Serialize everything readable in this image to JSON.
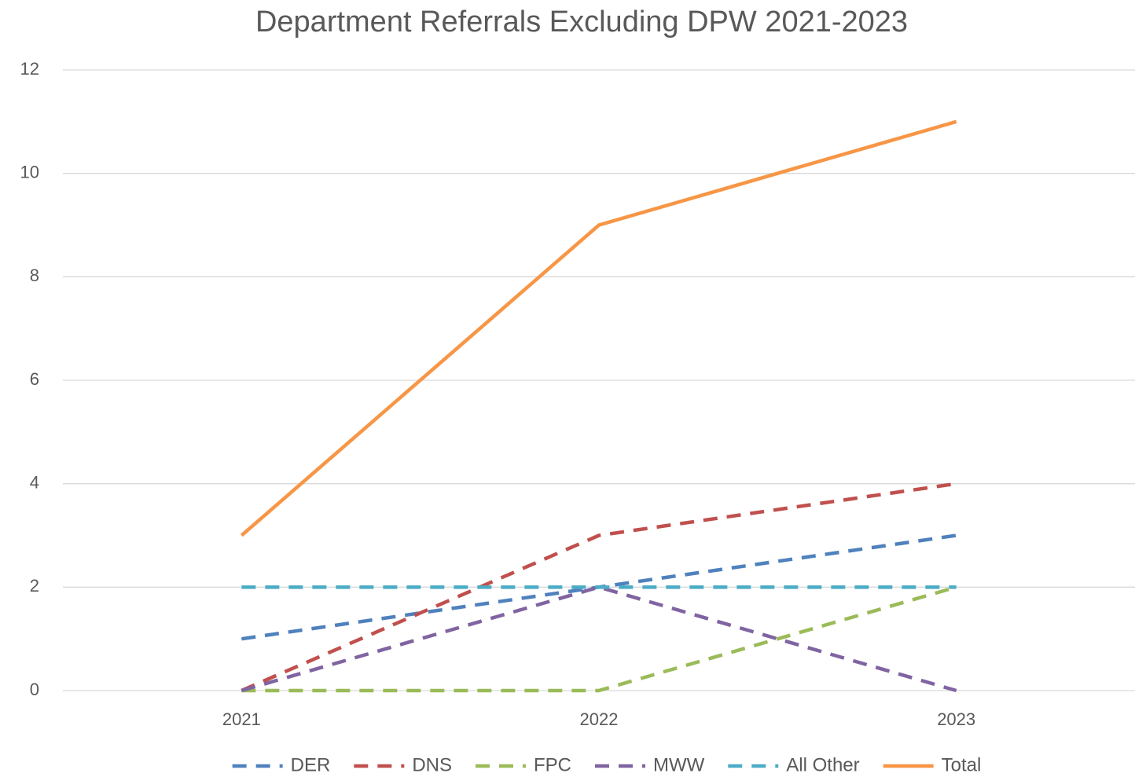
{
  "chart_data": {
    "type": "line",
    "title": "Department Referrals Excluding DPW 2021-2023",
    "categories": [
      "2021",
      "2022",
      "2023"
    ],
    "series": [
      {
        "name": "DER",
        "color": "#4f81bd",
        "dashed": true,
        "values": [
          1,
          2,
          3
        ]
      },
      {
        "name": "DNS",
        "color": "#c0504d",
        "dashed": true,
        "values": [
          0,
          3,
          4
        ]
      },
      {
        "name": "FPC",
        "color": "#9bbb59",
        "dashed": true,
        "values": [
          0,
          0,
          2
        ]
      },
      {
        "name": "MWW",
        "color": "#8064a2",
        "dashed": true,
        "values": [
          0,
          2,
          0
        ]
      },
      {
        "name": "All Other",
        "color": "#4bacc6",
        "dashed": true,
        "values": [
          2,
          2,
          2
        ]
      },
      {
        "name": "Total",
        "color": "#f79646",
        "dashed": false,
        "values": [
          3,
          9,
          11
        ]
      }
    ],
    "ylim": [
      0,
      12
    ],
    "yticks": [
      0,
      2,
      4,
      6,
      8,
      10,
      12
    ],
    "grid": true,
    "legend": "bottom"
  }
}
